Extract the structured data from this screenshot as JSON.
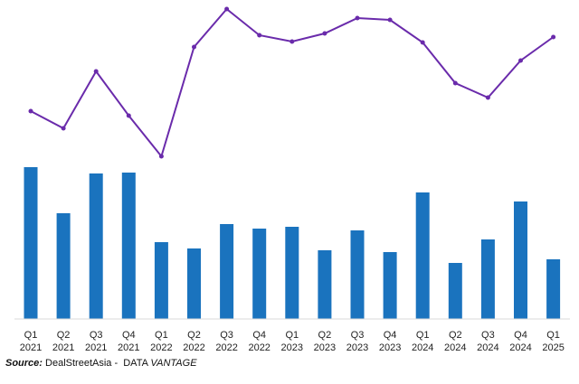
{
  "chart_data": {
    "type": "bar",
    "title": "",
    "xlabel": "",
    "ylabel": "",
    "categories": [
      [
        "Q1",
        "2021"
      ],
      [
        "Q2",
        "2021"
      ],
      [
        "Q3",
        "2021"
      ],
      [
        "Q4",
        "2021"
      ],
      [
        "Q1",
        "2022"
      ],
      [
        "Q2",
        "2022"
      ],
      [
        "Q3",
        "2022"
      ],
      [
        "Q4",
        "2022"
      ],
      [
        "Q1",
        "2023"
      ],
      [
        "Q2",
        "2023"
      ],
      [
        "Q3",
        "2023"
      ],
      [
        "Q4",
        "2023"
      ],
      [
        "Q1",
        "2024"
      ],
      [
        "Q2",
        "2024"
      ],
      [
        "Q3",
        "2024"
      ],
      [
        "Q4",
        "2024"
      ],
      [
        "Q1",
        "2025"
      ]
    ],
    "series": [
      {
        "name": "bars",
        "kind": "bar",
        "color": "#1a73be",
        "values": [
          168,
          117,
          161,
          162,
          85,
          78,
          105,
          100,
          102,
          76,
          98,
          74,
          140,
          62,
          88,
          130,
          66
        ],
        "ylim": [
          0,
          175
        ]
      },
      {
        "name": "line",
        "kind": "line",
        "color": "#6a2bab",
        "values": [
          57,
          38,
          101,
          52,
          7,
          128,
          170,
          141,
          134,
          143,
          160,
          158,
          133,
          88,
          72,
          113,
          139
        ],
        "ylim": [
          0,
          180
        ]
      }
    ],
    "note": "No value axis shown; values are relative units",
    "grid": false,
    "legend": "none"
  },
  "source": {
    "label": "Source:",
    "text": " DealStreetAsia -  DATA ",
    "brand": "VANTAGE"
  }
}
